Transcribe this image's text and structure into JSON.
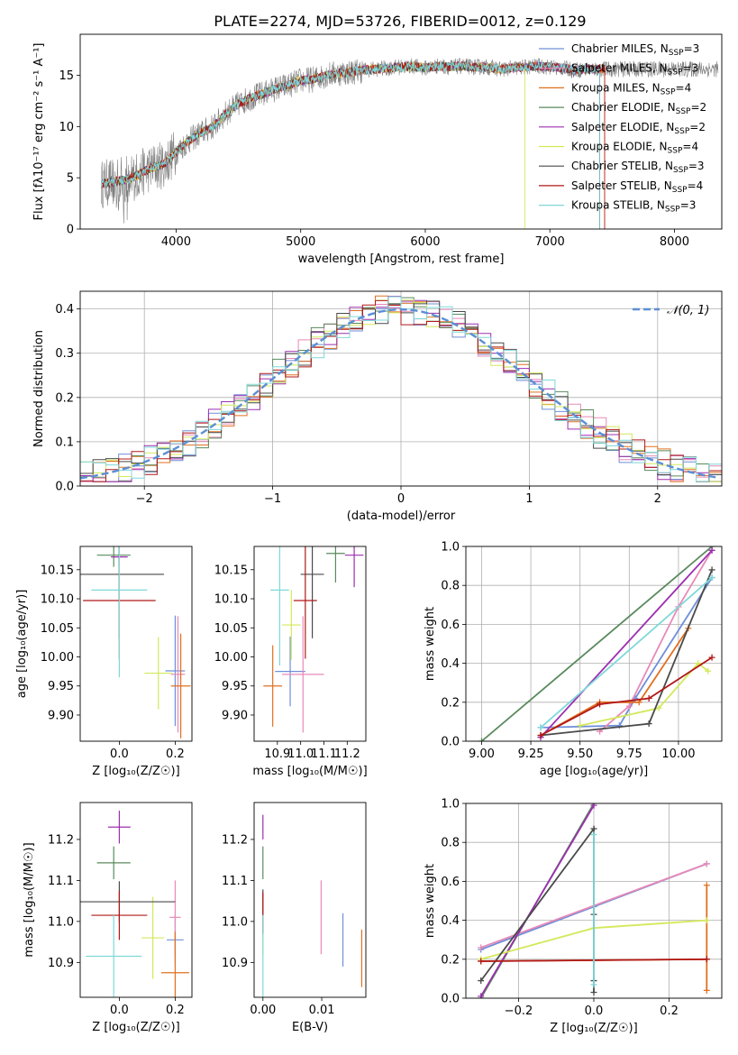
{
  "figure_title": "PLATE=2274, MJD=53726, FIBERID=0012, z=0.129",
  "models": [
    {
      "name": "Chabrier MILES",
      "nssp": "3",
      "color": "#6f8fd8"
    },
    {
      "name": "Salpeter MILES",
      "nssp": "3",
      "color": "#e889b8"
    },
    {
      "name": "Kroupa MILES",
      "nssp": "4",
      "color": "#e07020"
    },
    {
      "name": "Chabrier ELODIE",
      "nssp": "2",
      "color": "#5a8a5e"
    },
    {
      "name": "Salpeter ELODIE",
      "nssp": "2",
      "color": "#9c2fb0"
    },
    {
      "name": "Kroupa ELODIE",
      "nssp": "4",
      "color": "#d4e85a"
    },
    {
      "name": "Chabrier STELIB",
      "nssp": "3",
      "color": "#4a4a4a"
    },
    {
      "name": "Salpeter STELIB",
      "nssp": "4",
      "color": "#b01818"
    },
    {
      "name": "Kroupa STELIB",
      "nssp": "3",
      "color": "#7fd8d8"
    }
  ],
  "chart_data": [
    {
      "id": "spectrum",
      "type": "line",
      "xlabel": "wavelength [Angstrom, rest frame]",
      "ylabel": "Flux [fλ10⁻¹⁷ erg cm⁻² s⁻¹ A⁻¹]",
      "xlim": [
        3230,
        8380
      ],
      "ylim": [
        0,
        19
      ],
      "xticks": [
        4000,
        5000,
        6000,
        7000,
        8000
      ],
      "yticks": [
        0,
        5,
        10,
        15
      ],
      "x": [
        3400,
        3500,
        3600,
        3700,
        3800,
        3900,
        4000,
        4100,
        4200,
        4300,
        4400,
        4500,
        4600,
        4700,
        4800,
        4900,
        5000,
        5100,
        5200,
        5300,
        5400,
        5500,
        5600,
        5700,
        5800,
        5900,
        6000,
        6100,
        6200,
        6300,
        6400,
        6500,
        6600,
        6700,
        6800,
        6900,
        7000,
        7100,
        7200,
        7300,
        7400
      ],
      "model_flux": [
        4.4,
        4.6,
        4.8,
        5.3,
        6.0,
        6.3,
        7.5,
        8.6,
        9.4,
        10.0,
        11.3,
        12.2,
        12.8,
        13.2,
        13.7,
        14.0,
        14.5,
        14.6,
        15.0,
        15.2,
        15.3,
        15.5,
        15.6,
        15.7,
        15.8,
        15.9,
        15.7,
        15.9,
        15.8,
        15.9,
        15.8,
        15.8,
        15.6,
        15.7,
        15.8,
        15.9,
        15.8,
        15.7,
        15.5,
        15.6,
        15.6
      ],
      "series_end": [
        7400,
        7400,
        7440,
        7400,
        7400,
        6800,
        7400,
        7440,
        7400
      ],
      "legend_position": "upper right"
    },
    {
      "id": "residuals",
      "type": "bar",
      "xlabel": "(data-model)/error",
      "ylabel": "Normed distribution",
      "xlim": [
        -2.5,
        2.5
      ],
      "ylim": [
        0,
        0.44
      ],
      "xticks": [
        -2,
        -1,
        0,
        1,
        2
      ],
      "yticks": [
        0.0,
        0.1,
        0.2,
        0.3,
        0.4
      ],
      "bin_width": 0.1,
      "reference": {
        "label": "𝒩(0, 1)",
        "color": "#5b8fd4"
      },
      "grid": true,
      "legend_position": "upper right"
    },
    {
      "id": "age-vs-Z",
      "type": "scatter",
      "xlabel": "Z [log₁₀(Z/Z☉)]",
      "ylabel": "age  [log₁₀(age/yr)]",
      "xlim": [
        -0.14,
        0.26
      ],
      "ylim": [
        9.855,
        10.19
      ],
      "xticks": [
        0.0,
        0.2
      ],
      "yticks": [
        9.9,
        9.95,
        10.0,
        10.05,
        10.1,
        10.15
      ],
      "points": [
        {
          "x": 0.2,
          "xerr": 0.035,
          "y": 9.976,
          "yerr": 0.095
        },
        {
          "x": 0.21,
          "xerr": 0.025,
          "y": 9.97,
          "yerr": 0.1
        },
        {
          "x": 0.22,
          "xerr": 0.035,
          "y": 9.95,
          "yerr": 0.09
        },
        {
          "x": -0.02,
          "xerr": 0.06,
          "y": 10.175,
          "yerr": 0.02
        },
        {
          "x": 0.0,
          "xerr": 0.03,
          "y": 10.172,
          "yerr": 0.015
        },
        {
          "x": 0.14,
          "xerr": 0.05,
          "y": 9.972,
          "yerr": 0.062
        },
        {
          "x": 0.0,
          "xerr": 0.16,
          "y": 10.142,
          "yerr": 0.11
        },
        {
          "x": 0.0,
          "xerr": 0.13,
          "y": 10.097,
          "yerr": 0.1
        },
        {
          "x": 0.0,
          "xerr": 0.1,
          "y": 10.115,
          "yerr": 0.15
        }
      ]
    },
    {
      "id": "age-vs-mass",
      "type": "scatter",
      "xlabel": "mass [log₁₀(M/M☉)]",
      "ylabel": "",
      "xlim": [
        10.8,
        11.28
      ],
      "ylim": [
        9.855,
        10.19
      ],
      "xticks": [
        10.9,
        11.0,
        11.1,
        11.2
      ],
      "yticks": [
        9.9,
        9.95,
        10.0,
        10.05,
        10.1,
        10.15
      ],
      "points": [
        {
          "x": 10.955,
          "xerr": 0.065,
          "y": 9.975,
          "yerr": 0.06
        },
        {
          "x": 11.01,
          "xerr": 0.09,
          "y": 9.97,
          "yerr": 0.1
        },
        {
          "x": 10.88,
          "xerr": 0.04,
          "y": 9.95,
          "yerr": 0.07
        },
        {
          "x": 11.15,
          "xerr": 0.04,
          "y": 10.178,
          "yerr": 0.05
        },
        {
          "x": 11.23,
          "xerr": 0.04,
          "y": 10.175,
          "yerr": 0.055
        },
        {
          "x": 10.96,
          "xerr": 0.04,
          "y": 10.055,
          "yerr": 0.06
        },
        {
          "x": 11.05,
          "xerr": 0.05,
          "y": 10.142,
          "yerr": 0.11
        },
        {
          "x": 11.02,
          "xerr": 0.05,
          "y": 10.097,
          "yerr": 0.1
        },
        {
          "x": 10.91,
          "xerr": 0.04,
          "y": 10.115,
          "yerr": 0.13
        }
      ]
    },
    {
      "id": "weight-vs-age",
      "type": "line",
      "xlabel": "age  [log₁₀(age/yr)]",
      "ylabel": "mass weight",
      "xlim": [
        8.92,
        10.22
      ],
      "ylim": [
        0,
        1
      ],
      "xticks": [
        9.0,
        9.25,
        9.5,
        9.75,
        10.0
      ],
      "yticks": [
        0.0,
        0.2,
        0.4,
        0.6,
        0.8,
        1.0
      ],
      "grid": true,
      "series": [
        {
          "x": [
            9.3,
            9.7,
            9.78,
            10.17
          ],
          "y": [
            0.07,
            0.08,
            0.22,
            0.84
          ]
        },
        {
          "x": [
            9.6,
            9.75,
            10.0,
            10.17
          ],
          "y": [
            0.05,
            0.18,
            0.69,
            0.98
          ]
        },
        {
          "x": [
            9.3,
            9.6,
            9.8,
            10.05
          ],
          "y": [
            0.03,
            0.2,
            0.2,
            0.58
          ]
        },
        {
          "x": [
            9.0,
            10.17
          ],
          "y": [
            0.0,
            1.0
          ]
        },
        {
          "x": [
            9.3,
            10.17
          ],
          "y": [
            0.02,
            0.98
          ]
        },
        {
          "x": [
            9.5,
            9.9,
            10.1,
            10.15
          ],
          "y": [
            0.08,
            0.17,
            0.4,
            0.36
          ]
        },
        {
          "x": [
            9.3,
            9.85,
            10.17
          ],
          "y": [
            0.03,
            0.09,
            0.88
          ]
        },
        {
          "x": [
            9.3,
            9.6,
            9.85,
            10.17
          ],
          "y": [
            0.03,
            0.19,
            0.22,
            0.43
          ]
        },
        {
          "x": [
            9.3,
            10.17
          ],
          "y": [
            0.07,
            0.84
          ]
        }
      ]
    },
    {
      "id": "mass-vs-Z",
      "type": "scatter",
      "xlabel": "Z [log₁₀(Z/Z☉)]",
      "ylabel": "mass [log₁₀(M/M☉)]",
      "xlim": [
        -0.14,
        0.26
      ],
      "ylim": [
        10.815,
        11.29
      ],
      "xticks": [
        0.0,
        0.2
      ],
      "yticks": [
        10.9,
        11.0,
        11.1,
        11.2
      ],
      "points": [
        {
          "x": 0.2,
          "xerr": 0.03,
          "y": 10.955,
          "yerr": 0.06
        },
        {
          "x": 0.2,
          "xerr": 0.02,
          "y": 11.01,
          "yerr": 0.09
        },
        {
          "x": 0.2,
          "xerr": 0.05,
          "y": 10.875,
          "yerr": 0.1
        },
        {
          "x": -0.02,
          "xerr": 0.06,
          "y": 11.143,
          "yerr": 0.04
        },
        {
          "x": 0.0,
          "xerr": 0.04,
          "y": 11.23,
          "yerr": 0.04
        },
        {
          "x": 0.12,
          "xerr": 0.04,
          "y": 10.96,
          "yerr": 0.1
        },
        {
          "x": 0.0,
          "xerr": 0.2,
          "y": 11.048,
          "yerr": 0.05
        },
        {
          "x": 0.0,
          "xerr": 0.1,
          "y": 11.015,
          "yerr": 0.06
        },
        {
          "x": -0.02,
          "xerr": 0.1,
          "y": 10.915,
          "yerr": 0.1
        }
      ]
    },
    {
      "id": "mass-vs-EBV",
      "type": "scatter",
      "xlabel": "E(B-V)",
      "ylabel": "",
      "xlim": [
        -0.0015,
        0.0175
      ],
      "ylim": [
        10.815,
        11.29
      ],
      "xticks": [
        0.0,
        0.01
      ],
      "yticks": [
        10.9,
        11.0,
        11.1,
        11.2
      ],
      "points": [
        {
          "x": 0.0136,
          "y": 10.955,
          "yerr": 0.065
        },
        {
          "x": 0.0099,
          "y": 11.01,
          "yerr": 0.09
        },
        {
          "x": 0.0168,
          "y": 10.91,
          "yerr": 0.07
        },
        {
          "x": 0.0,
          "y": 11.143,
          "yerr": 0.04
        },
        {
          "x": 0.0,
          "y": 11.23,
          "yerr": 0.03
        },
        {
          "x": 0.0,
          "y": 10.96,
          "yerr": 0.04
        },
        {
          "x": 0.0,
          "y": 11.048,
          "yerr": 0.03
        },
        {
          "x": 0.0,
          "y": 11.02,
          "yerr": 0.05
        },
        {
          "x": 0.0,
          "y": 10.915,
          "yerr": 0.1
        }
      ]
    },
    {
      "id": "weight-vs-Z",
      "type": "line",
      "xlabel": "Z [log₁₀(Z/Z☉)]",
      "ylabel": "mass weight",
      "xlim": [
        -0.34,
        0.34
      ],
      "ylim": [
        0,
        1
      ],
      "xticks": [
        -0.2,
        0.0,
        0.2
      ],
      "yticks": [
        0.0,
        0.2,
        0.4,
        0.6,
        0.8,
        1.0
      ],
      "grid": true,
      "series": [
        {
          "x": [
            -0.3,
            0.0,
            0.3
          ],
          "y": [
            0.25,
            0.47,
            0.69
          ]
        },
        {
          "x": [
            -0.3,
            0.3
          ],
          "y": [
            0.26,
            0.69
          ]
        },
        {
          "x": [
            -0.3,
            0.3,
            0.3,
            0.3
          ],
          "y": [
            0.19,
            0.2,
            0.58,
            0.04
          ]
        },
        {
          "x": [
            -0.3,
            0.0
          ],
          "y": [
            0.0,
            1.0
          ]
        },
        {
          "x": [
            -0.3,
            0.0
          ],
          "y": [
            0.01,
            0.99
          ]
        },
        {
          "x": [
            -0.3,
            0.0,
            0.3
          ],
          "y": [
            0.2,
            0.36,
            0.4
          ]
        },
        {
          "x": [
            -0.3,
            0.0,
            0.0,
            0.0,
            0.0
          ],
          "y": [
            0.09,
            0.87,
            0.43,
            0.09,
            0.03
          ]
        },
        {
          "x": [
            -0.3,
            0.3
          ],
          "y": [
            0.19,
            0.2
          ]
        },
        {
          "x": [
            0.0,
            0.0
          ],
          "y": [
            0.07,
            0.84
          ]
        }
      ]
    }
  ]
}
